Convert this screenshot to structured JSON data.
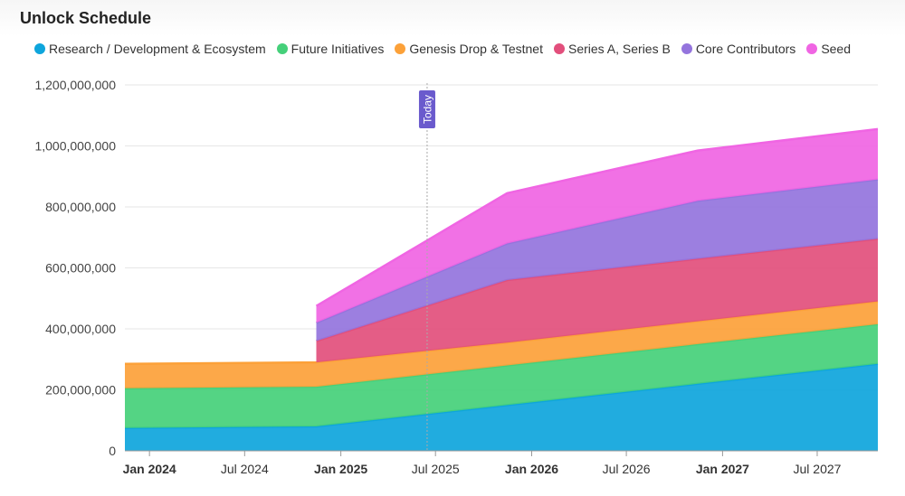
{
  "page": {
    "title": "Unlock Schedule"
  },
  "chart_data": {
    "type": "area",
    "stacked": true,
    "title": "Unlock Schedule",
    "xlabel": "",
    "ylabel": "",
    "x_range": [
      "2023-11-15",
      "2027-10-25"
    ],
    "y_range": [
      0,
      1200000000
    ],
    "y_ticks": [
      0,
      200000000,
      400000000,
      600000000,
      800000000,
      1000000000,
      1200000000
    ],
    "y_tick_labels": [
      "0",
      "200,000,000",
      "400,000,000",
      "600,000,000",
      "800,000,000",
      "1,000,000,000",
      "1,200,000,000"
    ],
    "x_ticks": [
      {
        "date": "2024-01-01",
        "label": "Jan 2024",
        "bold": true
      },
      {
        "date": "2024-07-01",
        "label": "Jul 2024",
        "bold": false
      },
      {
        "date": "2025-01-01",
        "label": "Jan 2025",
        "bold": true
      },
      {
        "date": "2025-07-01",
        "label": "Jul 2025",
        "bold": false
      },
      {
        "date": "2026-01-01",
        "label": "Jan 2026",
        "bold": true
      },
      {
        "date": "2026-07-01",
        "label": "Jul 2026",
        "bold": false
      },
      {
        "date": "2027-01-01",
        "label": "Jan 2027",
        "bold": true
      },
      {
        "date": "2027-07-01",
        "label": "Jul 2027",
        "bold": false
      }
    ],
    "grid": true,
    "legend_position": "top-left",
    "x": [
      "2023-11-15",
      "2024-11-15",
      "2025-11-15",
      "2026-11-15",
      "2027-10-25"
    ],
    "series": [
      {
        "name": "Research / Development & Ecosystem",
        "color": "#0ea5dc",
        "values": [
          75000000,
          80000000,
          150000000,
          220000000,
          285000000
        ]
      },
      {
        "name": "Future Initiatives",
        "color": "#45d07a",
        "values": [
          130000000,
          130000000,
          130000000,
          130000000,
          130000000
        ]
      },
      {
        "name": "Genesis Drop & Testnet",
        "color": "#fca139",
        "values": [
          80000000,
          80000000,
          75000000,
          75000000,
          75000000
        ]
      },
      {
        "name": "Series A, Series B",
        "color": "#e24f7c",
        "values": [
          0,
          70000000,
          205000000,
          205000000,
          205000000
        ]
      },
      {
        "name": "Core Contributors",
        "color": "#9474dd",
        "values": [
          0,
          60000000,
          120000000,
          190000000,
          195000000
        ]
      },
      {
        "name": "Seed",
        "color": "#f065e3",
        "values": [
          0,
          55000000,
          165000000,
          165000000,
          165000000
        ]
      }
    ],
    "series_start_index": [
      0,
      0,
      0,
      1,
      1,
      1
    ],
    "today_marker": {
      "date": "2025-06-15",
      "label": "Today",
      "color": "#6a5acd"
    }
  }
}
